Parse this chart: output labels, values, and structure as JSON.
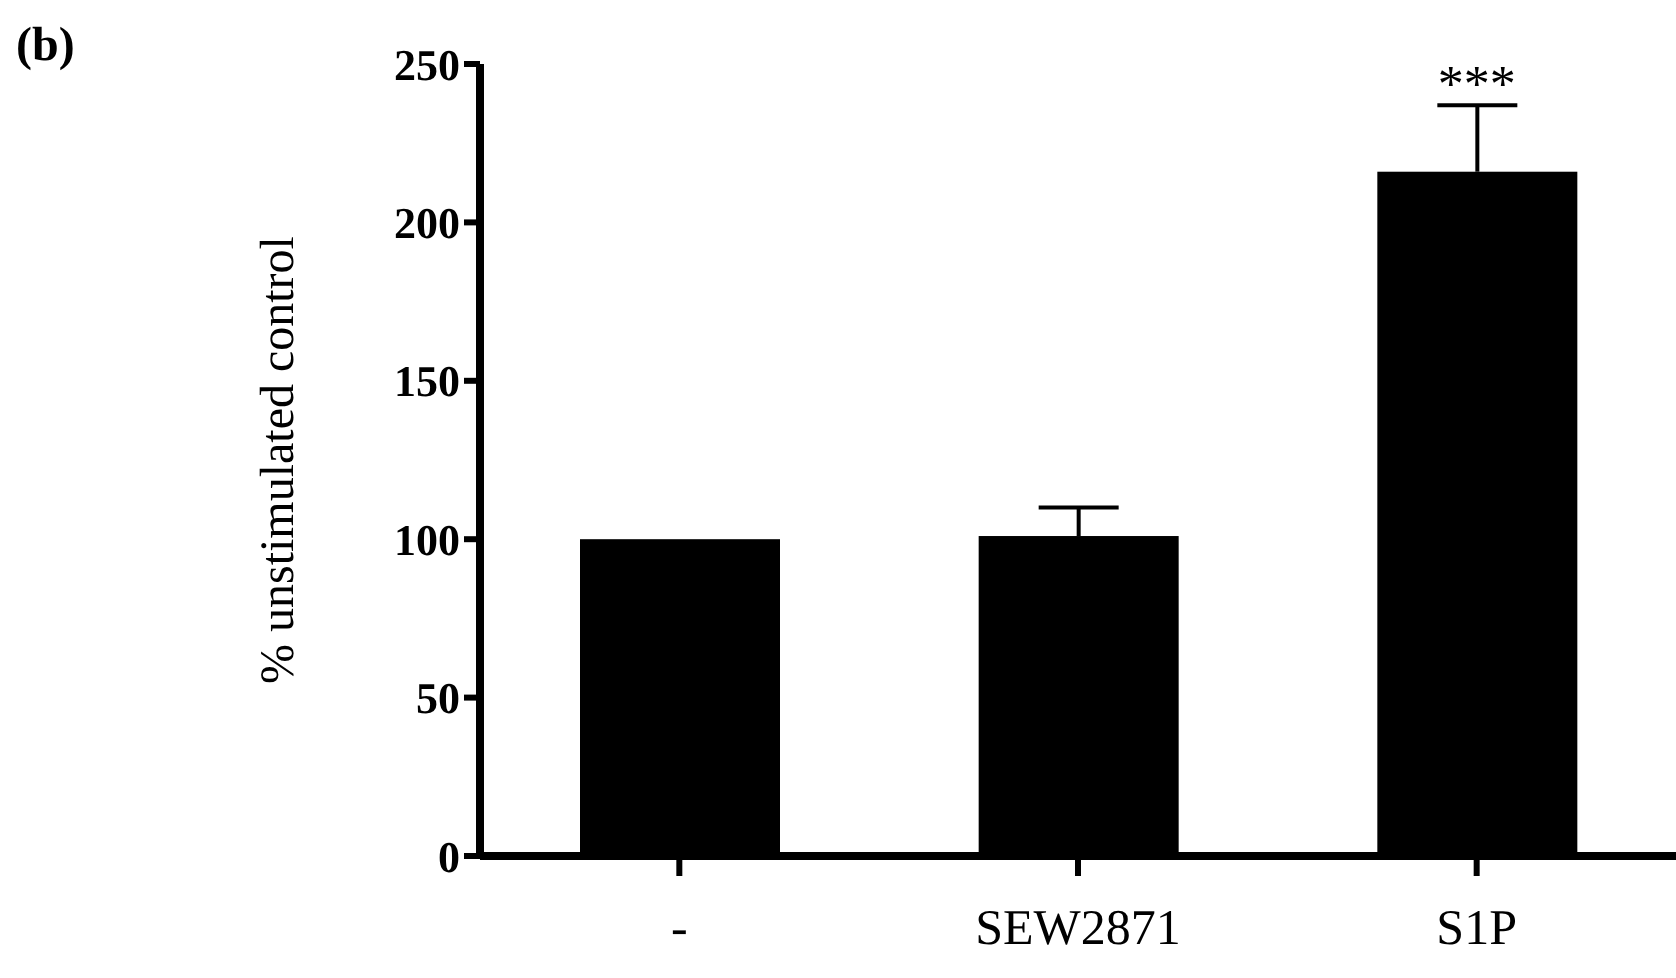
{
  "chart_data": {
    "type": "bar",
    "title": "(b)",
    "ylabel": "% unstimulated control",
    "categories": [
      "-",
      "SEW2871",
      "S1P"
    ],
    "values": [
      100,
      101,
      216
    ],
    "errors": [
      null,
      [
        101,
        110
      ],
      [
        216,
        237
      ]
    ],
    "color": "#000000",
    "ylim": [
      0,
      250
    ],
    "yticks": [
      0,
      50,
      100,
      150,
      200,
      250
    ],
    "annotations": [
      "***"
    ],
    "grid": false,
    "legend": false
  }
}
